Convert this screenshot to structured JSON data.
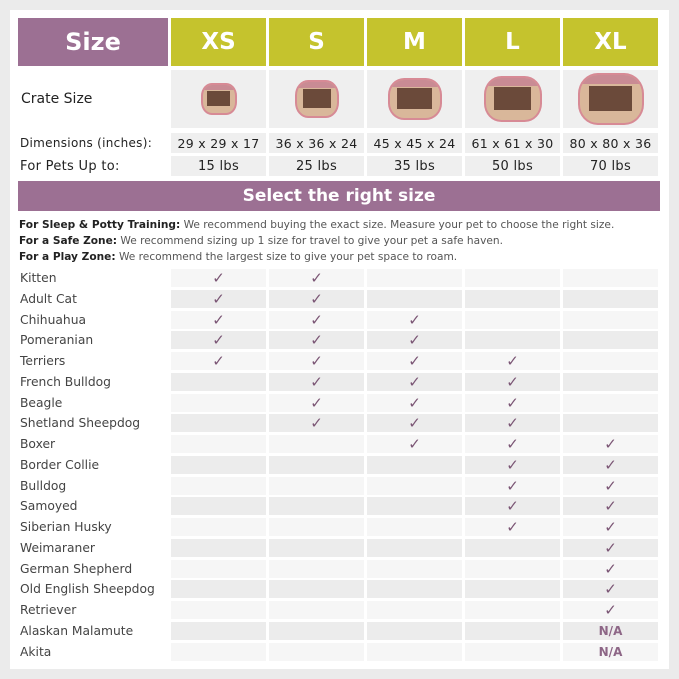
{
  "header": {
    "size_label": "Size",
    "sizes": [
      "XS",
      "S",
      "M",
      "L",
      "XL"
    ]
  },
  "crate_row": {
    "label": "Crate Size",
    "image_icons": [
      "playpen-xs",
      "playpen-s",
      "playpen-m",
      "playpen-l",
      "playpen-xl"
    ]
  },
  "dimensions": {
    "label": "Dimensions (inches):",
    "values": [
      "29 x 29 x 17",
      "36 x 36 x 24",
      "45 x 45 x 24",
      "61 x 61 x 30",
      "80 x 80 x 36"
    ]
  },
  "pets": {
    "label": "For Pets Up to:",
    "values": [
      "15 lbs",
      "25 lbs",
      "35 lbs",
      "50 lbs",
      "70 lbs"
    ]
  },
  "banner": "Select the right size",
  "notes": [
    {
      "bold": "For Sleep & Potty Training:",
      "text": " We recommend buying the exact size. Measure your pet to choose the right size."
    },
    {
      "bold": "For a Safe Zone:",
      "text": " We recommend sizing up 1 size for travel to give your pet a safe haven."
    },
    {
      "bold": "For a Play Zone:",
      "text": " We recommend the largest size to give your pet space to roam."
    }
  ],
  "check_symbol": "✓",
  "colors": {
    "purple": "#9c7093",
    "lime": "#c5c32d",
    "check": "#7b5675"
  },
  "breeds": [
    {
      "name": "Kitten",
      "fit": [
        "✓",
        "✓",
        "",
        "",
        ""
      ]
    },
    {
      "name": "Adult Cat",
      "fit": [
        "✓",
        "✓",
        "",
        "",
        ""
      ]
    },
    {
      "name": "Chihuahua",
      "fit": [
        "✓",
        "✓",
        "✓",
        "",
        ""
      ]
    },
    {
      "name": "Pomeranian",
      "fit": [
        "✓",
        "✓",
        "✓",
        "",
        ""
      ]
    },
    {
      "name": "Terriers",
      "fit": [
        "✓",
        "✓",
        "✓",
        "✓",
        ""
      ]
    },
    {
      "name": "French Bulldog",
      "fit": [
        "",
        "✓",
        "✓",
        "✓",
        ""
      ]
    },
    {
      "name": "Beagle",
      "fit": [
        "",
        "✓",
        "✓",
        "✓",
        ""
      ]
    },
    {
      "name": "Shetland Sheepdog",
      "fit": [
        "",
        "✓",
        "✓",
        "✓",
        ""
      ]
    },
    {
      "name": "Boxer",
      "fit": [
        "",
        "",
        "✓",
        "✓",
        "✓"
      ]
    },
    {
      "name": "Border Collie",
      "fit": [
        "",
        "",
        "",
        "✓",
        "✓"
      ]
    },
    {
      "name": "Bulldog",
      "fit": [
        "",
        "",
        "",
        "✓",
        "✓"
      ]
    },
    {
      "name": "Samoyed",
      "fit": [
        "",
        "",
        "",
        "✓",
        "✓"
      ]
    },
    {
      "name": "Siberian Husky",
      "fit": [
        "",
        "",
        "",
        "✓",
        "✓"
      ]
    },
    {
      "name": "Weimaraner",
      "fit": [
        "",
        "",
        "",
        "",
        "✓"
      ]
    },
    {
      "name": "German Shepherd",
      "fit": [
        "",
        "",
        "",
        "",
        "✓"
      ]
    },
    {
      "name": "Old English Sheepdog",
      "fit": [
        "",
        "",
        "",
        "",
        "✓"
      ]
    },
    {
      "name": "Retriever",
      "fit": [
        "",
        "",
        "",
        "",
        "✓"
      ]
    },
    {
      "name": "Alaskan Malamute",
      "fit": [
        "",
        "",
        "",
        "",
        "N/A"
      ]
    },
    {
      "name": "Akita",
      "fit": [
        "",
        "",
        "",
        "",
        "N/A"
      ]
    }
  ]
}
